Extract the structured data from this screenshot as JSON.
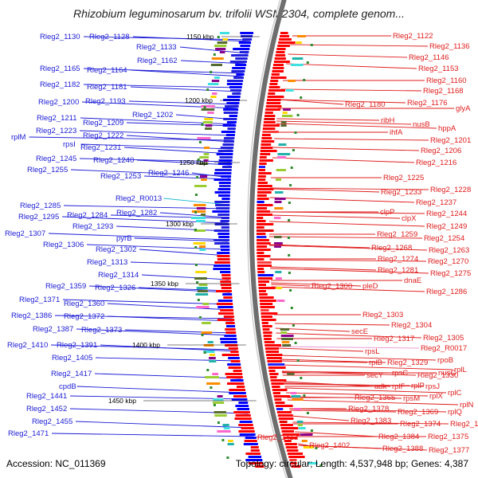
{
  "title": "Rhizobium leguminosarum bv. trifolii WSM2304, complete genom...",
  "footer": {
    "accession": "Accession: NC_011369",
    "topology": "Topology: circular; Length: 4,537,948 bp; Genes: 4,387"
  },
  "colors": {
    "left_labels": "#1b1bd6",
    "right_labels": "#e01b1b",
    "rna_label": "#20b8d8",
    "pink_label": "#e896d6",
    "backbone": "#808080",
    "forward_genes": "#ff0000",
    "reverse_genes": "#0000ff"
  },
  "ticks": [
    "1150 kbp",
    "1200 kbp",
    "1250 kbp",
    "1300 kbp",
    "1350 kbp",
    "1400 kbp",
    "1450 kbp"
  ],
  "left_labels": [
    "Rleg2_1130",
    "Rleg2_1128",
    "Rleg2_1133",
    "Rleg2_1162",
    "Rleg2_1165",
    "Rleg2_1164",
    "Rleg2_1182",
    "Rleg2_1181",
    "Rleg2_1200",
    "Rleg2_1193",
    "Rleg2_1202",
    "Rleg2_1211",
    "Rleg2_1209",
    "Rleg2_1223",
    "Rleg2_1222",
    "rplM",
    "rpsI",
    "Rleg2_1231",
    "Rleg2_1245",
    "Rleg2_1240",
    "Rleg2_1255",
    "Rleg2_1253",
    "Rleg2_1246",
    "Rleg2_R0013",
    "Rleg2_1285",
    "Rleg2_1282",
    "Rleg2_1295",
    "Rleg2_1284",
    "Rleg2_1293",
    "Rleg2_1307",
    "pyrB",
    "Rleg2_1306",
    "Rleg2_1302",
    "Rleg2_1313",
    "Rleg2_1314",
    "Rleg2_1359",
    "Rleg2_1326",
    "Rleg2_1371",
    "Rleg2_1360",
    "Rleg2_1386",
    "Rleg2_1372",
    "Rleg2_1387",
    "Rleg2_1373",
    "Rleg2_1410",
    "Rleg2_1391",
    "Rleg2_1405",
    "Rleg2_1417",
    "cpdB",
    "Rleg2_1441",
    "Rleg2_1452",
    "Rleg2_1455",
    "Rleg2_1471"
  ],
  "right_labels": [
    "Rleg2_1122",
    "Rleg2_1136",
    "Rleg2_1146",
    "Rleg2_1153",
    "Rleg2_1160",
    "Rleg2_1168",
    "Rleg2_1176",
    "Rleg2_1180",
    "glyA",
    "ribH",
    "nusB",
    "hppA",
    "ihfA",
    "Rleg2_1201",
    "Rleg2_1206",
    "Rleg2_1216",
    "Rleg2_1225",
    "Rleg2_1228",
    "Rleg2_1233",
    "Rleg2_1237",
    "clpP",
    "Rleg2_1244",
    "clpX",
    "Rleg2_1249",
    "Rleg2_1259",
    "Rleg2_1254",
    "Rleg2_1268",
    "Rleg2_1263",
    "Rleg2_1274",
    "Rleg2_1270",
    "Rleg2_1281",
    "Rleg2_1275",
    "dnaE",
    "Rleg2_1300",
    "pleD",
    "Rleg2_1286",
    "Rleg2_1303",
    "Rleg2_1304",
    "secE",
    "Rleg2_1305",
    "Rleg2_1317",
    "Rleg2_R0017",
    "rpsL",
    "rpoB",
    "nusG",
    "rplB",
    "Rleg2_1329",
    "rplL",
    "secY",
    "rpsC",
    "Rleg2_1330",
    "adk",
    "rplF",
    "rplP",
    "rpsJ",
    "rplC",
    "Rleg2_1365",
    "rpsM",
    "rplX",
    "rplN",
    "Rleg2_1378",
    "Rleg2_1369",
    "rplQ",
    "Rleg2_1383",
    "Rleg2_1374",
    "Rleg2_1364",
    "Rleg2_1412",
    "Rleg2_1384",
    "Rleg2_1375",
    "Rleg2_1402",
    "Rleg2_1388",
    "Rleg2_1377"
  ]
}
